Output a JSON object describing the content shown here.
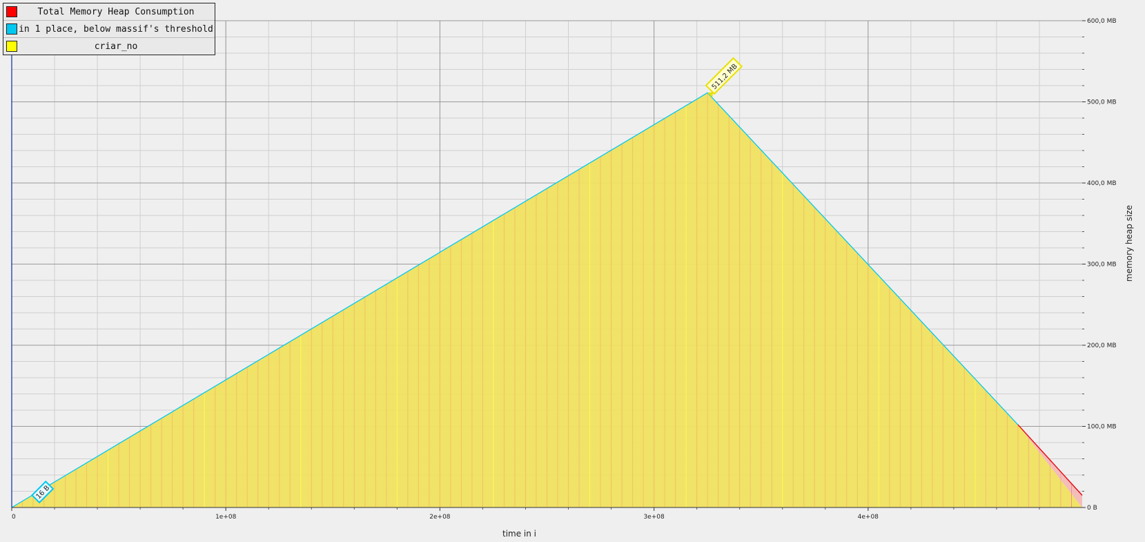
{
  "chart_data": {
    "type": "area",
    "title": "",
    "xlabel": "time in i",
    "ylabel": "memory heap size",
    "xlim": [
      0,
      500000000
    ],
    "ylim": [
      0,
      600
    ],
    "x_ticks": [
      {
        "value": 0,
        "label": "0"
      },
      {
        "value": 100000000,
        "label": "1e+08"
      },
      {
        "value": 200000000,
        "label": "2e+08"
      },
      {
        "value": 300000000,
        "label": "3e+08"
      },
      {
        "value": 400000000,
        "label": "4e+08"
      }
    ],
    "y_ticks": [
      {
        "value": 0,
        "label": "0 B"
      },
      {
        "value": 100,
        "label": "100,0 MB"
      },
      {
        "value": 200,
        "label": "200,0 MB"
      },
      {
        "value": 300,
        "label": "300,0 MB"
      },
      {
        "value": 400,
        "label": "400,0 MB"
      },
      {
        "value": 500,
        "label": "500,0 MB"
      },
      {
        "value": 600,
        "label": "600,0 MB"
      }
    ],
    "grid": true,
    "legend": {
      "placement": "top-left",
      "entries": [
        {
          "name": "Total Memory Heap Consumption",
          "color": "#ff0000"
        },
        {
          "name": "in 1 place, below massif's threshold",
          "color": "#00c8f0"
        },
        {
          "name": "criar_no",
          "color": "#ffff00"
        }
      ]
    },
    "series": [
      {
        "name": "criar_no",
        "color": "#f0e060",
        "x": [
          0,
          325000000,
          470000000,
          500000000
        ],
        "y": [
          0,
          511.2,
          102,
          0
        ]
      },
      {
        "name": "in 1 place, below massif's threshold",
        "color": "#00c8f0",
        "x": [
          0,
          325000000,
          470000000,
          500000000
        ],
        "y": [
          0,
          511.2,
          102,
          15
        ]
      },
      {
        "name": "Total Memory Heap Consumption",
        "color": "#ff0000",
        "x": [
          0,
          325000000,
          470000000,
          500000000
        ],
        "y": [
          0,
          511.2,
          102,
          15
        ]
      }
    ],
    "annotations": [
      {
        "label": "511,2 MB",
        "x": 325000000,
        "y": 511.2
      },
      {
        "label": "16 B",
        "x": 10000000,
        "y": 0
      }
    ]
  }
}
